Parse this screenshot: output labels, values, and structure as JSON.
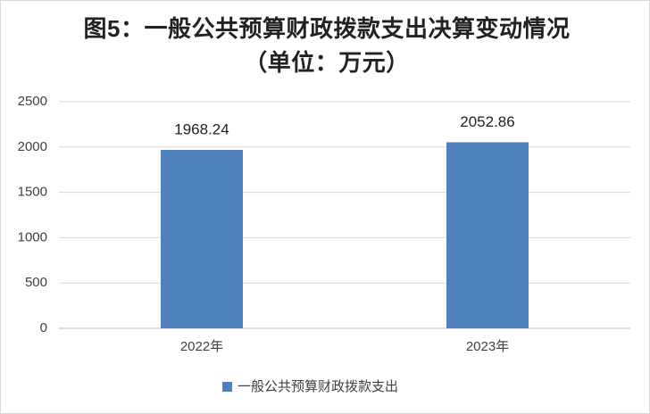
{
  "chart_data": {
    "type": "bar",
    "title": "图5：一般公共预算财政拨款支出决算变动情况（单位：万元）",
    "categories": [
      "2022年",
      "2023年"
    ],
    "series": [
      {
        "name": "一般公共预算财政拨款支出",
        "color": "#4f81bd",
        "values": [
          1968.24,
          2052.86
        ]
      }
    ],
    "ylim": [
      0,
      2500
    ],
    "yticks": [
      0,
      500,
      1000,
      1500,
      2000,
      2500
    ],
    "grid": true,
    "legend": "bottom"
  }
}
